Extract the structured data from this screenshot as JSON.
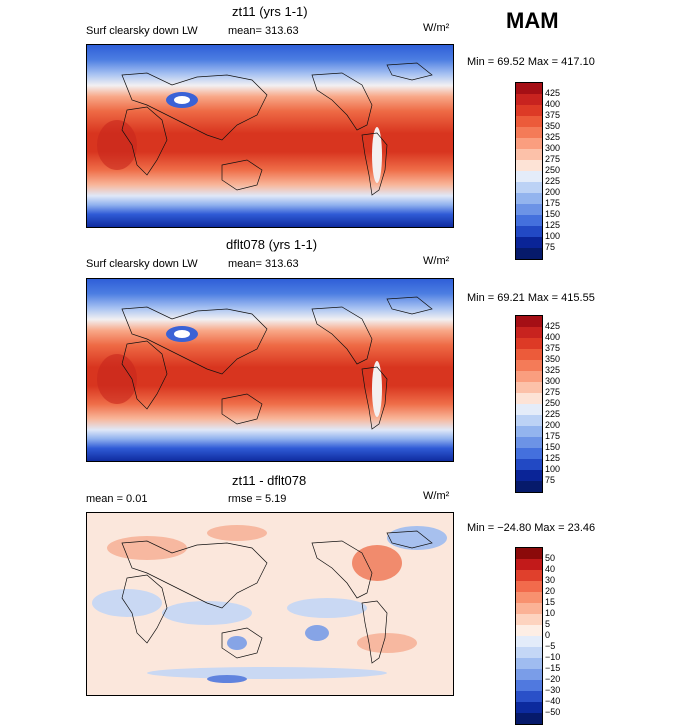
{
  "season": "MAM",
  "panels": [
    {
      "title": "zt11 (yrs 1-1)",
      "variable": "Surf clearsky down LW",
      "stat": "mean= 313.63",
      "stat2": "",
      "units": "W/m²",
      "minmax": "Min =  69.52 Max = 417.10",
      "colorbar": {
        "levels": [
          "425",
          "400",
          "375",
          "350",
          "325",
          "300",
          "275",
          "250",
          "225",
          "200",
          "175",
          "150",
          "125",
          "100",
          "75"
        ],
        "colors": [
          "#a50f15",
          "#c8231f",
          "#dd3a26",
          "#ec5b3a",
          "#f47b58",
          "#fa9e7f",
          "#fcc1a9",
          "#fde3d6",
          "#e4ecf9",
          "#bcd2f5",
          "#93b4ee",
          "#6c93e6",
          "#4470dd",
          "#2249c4",
          "#0a2497",
          "#061a6b"
        ]
      },
      "chart_data": {
        "type": "heatmap",
        "field": "Surf clearsky down LW",
        "units": "W/m²",
        "mean": 313.63,
        "min": 69.52,
        "max": 417.1,
        "contour_range": [
          75,
          425
        ],
        "contour_interval": 25
      }
    },
    {
      "title": "dflt078 (yrs 1-1)",
      "variable": "Surf clearsky down LW",
      "stat": "mean= 313.63",
      "stat2": "",
      "units": "W/m²",
      "minmax": "Min =  69.21 Max = 415.55",
      "colorbar": {
        "levels": [
          "425",
          "400",
          "375",
          "350",
          "325",
          "300",
          "275",
          "250",
          "225",
          "200",
          "175",
          "150",
          "125",
          "100",
          "75"
        ],
        "colors": [
          "#a50f15",
          "#c8231f",
          "#dd3a26",
          "#ec5b3a",
          "#f47b58",
          "#fa9e7f",
          "#fcc1a9",
          "#fde3d6",
          "#e4ecf9",
          "#bcd2f5",
          "#93b4ee",
          "#6c93e6",
          "#4470dd",
          "#2249c4",
          "#0a2497",
          "#061a6b"
        ]
      },
      "chart_data": {
        "type": "heatmap",
        "field": "Surf clearsky down LW",
        "units": "W/m²",
        "mean": 313.63,
        "min": 69.21,
        "max": 415.55,
        "contour_range": [
          75,
          425
        ],
        "contour_interval": 25
      }
    },
    {
      "title": "zt11 - dflt078",
      "variable": "",
      "stat": "mean =    0.01",
      "stat2": "rmse =    5.19",
      "units": "W/m²",
      "minmax": "Min = −24.80 Max =   23.46",
      "colorbar": {
        "levels": [
          "50",
          "40",
          "30",
          "20",
          "15",
          "10",
          "5",
          "0",
          "−5",
          "−10",
          "−15",
          "−20",
          "−30",
          "−40",
          "−50"
        ],
        "colors": [
          "#8b0a0a",
          "#c21a1a",
          "#e0402c",
          "#f26b4c",
          "#f8916f",
          "#fbb296",
          "#fdd3bf",
          "#fdeee5",
          "#e3ecfa",
          "#c4d7f6",
          "#9fbcf0",
          "#7a9de8",
          "#5079df",
          "#2a50c8",
          "#0c2a9e",
          "#061a6b"
        ]
      },
      "chart_data": {
        "type": "heatmap",
        "field": "zt11 - dflt078",
        "units": "W/m²",
        "mean": 0.01,
        "rmse": 5.19,
        "min": -24.8,
        "max": 23.46,
        "contour_levels": [
          -50,
          -40,
          -30,
          -20,
          -15,
          -10,
          -5,
          0,
          5,
          10,
          15,
          20,
          30,
          40,
          50
        ]
      }
    }
  ]
}
